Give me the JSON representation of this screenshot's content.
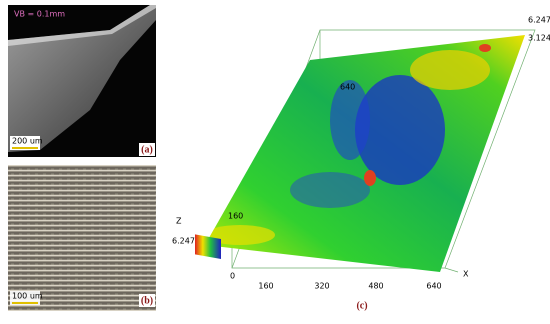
{
  "panel_a": {
    "annotation": "VB = 0.1mm",
    "scale_bar": "200 um",
    "label": "(a)"
  },
  "panel_b": {
    "scale_bar": "100 um",
    "label": "(b)"
  },
  "panel_c": {
    "label": "(c)",
    "colorbar_top": "6.247",
    "colorbar_mid": "3.124",
    "y_ticks": [
      "640",
      "160"
    ],
    "z_axis": {
      "title": "Z",
      "max": "6.247",
      "min": "0"
    },
    "x_axis": {
      "title": "X",
      "ticks": [
        "0",
        "160",
        "320",
        "480",
        "640"
      ]
    }
  }
}
